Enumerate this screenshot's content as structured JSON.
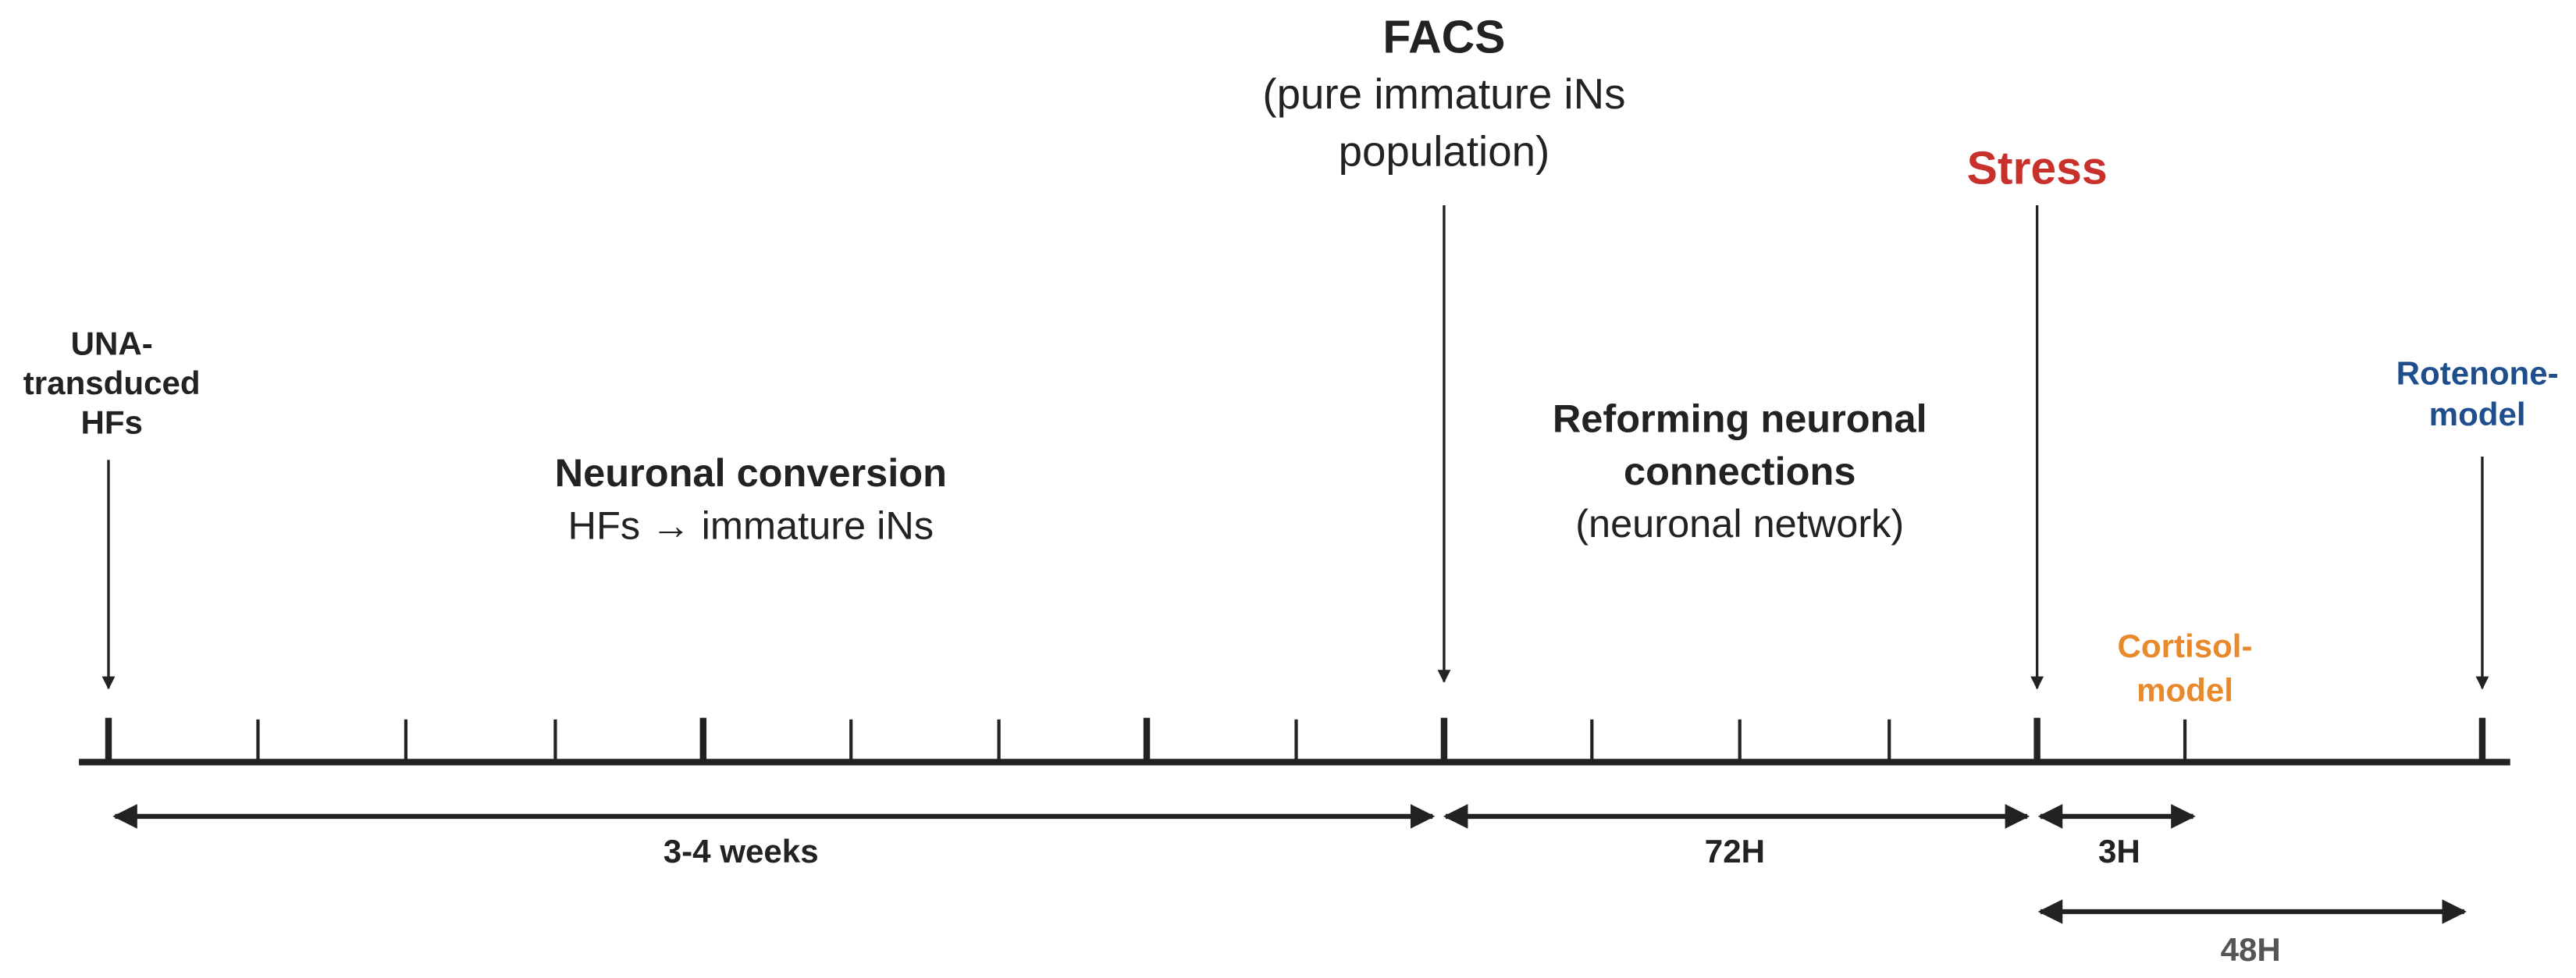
{
  "events": [
    {
      "label": [
        "UNA-",
        "transduced",
        "HFs"
      ]
    },
    {
      "label": [
        "FACS"
      ],
      "sublabel": [
        "(pure immature iNs",
        "population)"
      ]
    },
    {
      "label": [
        "Stress"
      ]
    },
    {
      "label": [
        "Cortisol-",
        "model"
      ]
    },
    {
      "label": [
        "Rotenone-",
        "model"
      ]
    }
  ],
  "phases": [
    {
      "title": [
        "Neuronal conversion"
      ],
      "subtitle": [
        "HFs → immature iNs"
      ]
    },
    {
      "title": [
        "Reforming neuronal",
        "connections"
      ],
      "subtitle": [
        "(neuronal network)"
      ]
    }
  ],
  "durations": [
    "3-4 weeks",
    "72H",
    "3H",
    "48H"
  ]
}
